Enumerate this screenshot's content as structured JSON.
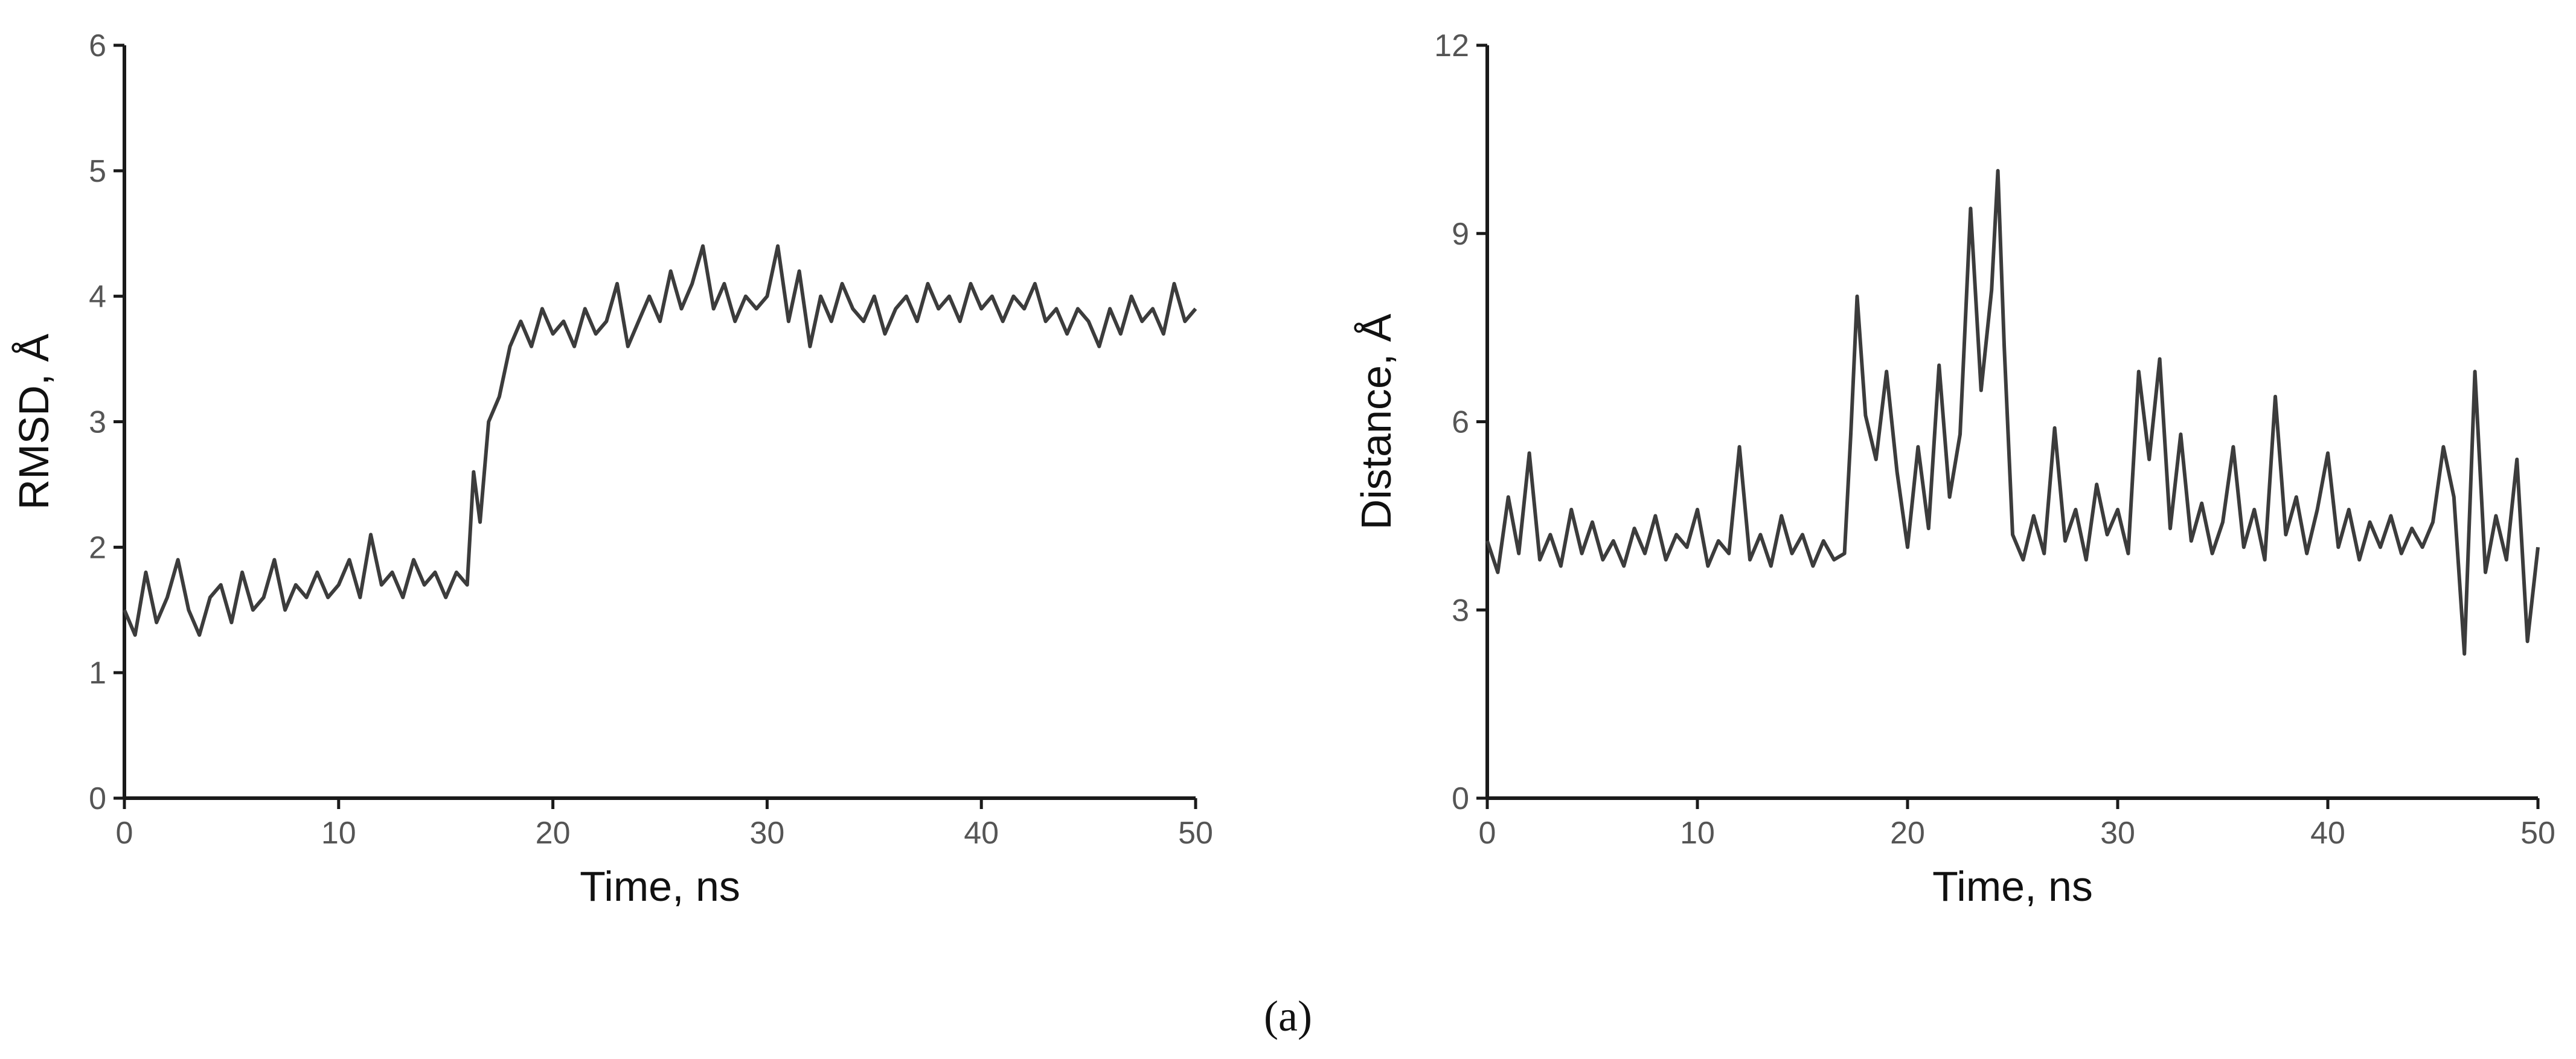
{
  "caption": "(a)",
  "chart_data": [
    {
      "type": "line",
      "xlabel": "Time, ns",
      "ylabel": "RMSD, Å",
      "xlim": [
        0,
        50
      ],
      "ylim": [
        0,
        6
      ],
      "xticks": [
        "0",
        "10",
        "20",
        "30",
        "40",
        "50"
      ],
      "yticks": [
        "0",
        "1",
        "2",
        "3",
        "4",
        "5",
        "6"
      ],
      "grid": false,
      "line_color": "#3c3c3c",
      "series": [
        {
          "x": [
            0,
            0.5,
            1,
            1.5,
            2,
            2.5,
            3,
            3.5,
            4,
            4.5,
            5,
            5.5,
            6,
            6.5,
            7,
            7.5,
            8,
            8.5,
            9,
            9.5,
            10,
            10.5,
            11,
            11.5,
            12,
            12.5,
            13,
            13.5,
            14,
            14.5,
            15,
            15.5,
            16,
            16.3,
            16.6,
            17,
            17.5,
            18,
            18.5,
            19,
            19.5,
            20,
            20.5,
            21,
            21.5,
            22,
            22.5,
            23,
            23.5,
            24,
            24.5,
            25,
            25.5,
            26,
            26.5,
            27,
            27.5,
            28,
            28.5,
            29,
            29.5,
            30,
            30.5,
            31,
            31.5,
            32,
            32.5,
            33,
            33.5,
            34,
            34.5,
            35,
            35.5,
            36,
            36.5,
            37,
            37.5,
            38,
            38.5,
            39,
            39.5,
            40,
            40.5,
            41,
            41.5,
            42,
            42.5,
            43,
            43.5,
            44,
            44.5,
            45,
            45.5,
            46,
            46.5,
            47,
            47.5,
            48,
            48.5,
            49,
            49.5,
            50
          ],
          "y": [
            1.5,
            1.3,
            1.8,
            1.4,
            1.6,
            1.9,
            1.5,
            1.3,
            1.6,
            1.7,
            1.4,
            1.8,
            1.5,
            1.6,
            1.9,
            1.5,
            1.7,
            1.6,
            1.8,
            1.6,
            1.7,
            1.9,
            1.6,
            2.1,
            1.7,
            1.8,
            1.6,
            1.9,
            1.7,
            1.8,
            1.6,
            1.8,
            1.7,
            2.6,
            2.2,
            3.0,
            3.2,
            3.6,
            3.8,
            3.6,
            3.9,
            3.7,
            3.8,
            3.6,
            3.9,
            3.7,
            3.8,
            4.1,
            3.6,
            3.8,
            4.0,
            3.8,
            4.2,
            3.9,
            4.1,
            4.4,
            3.9,
            4.1,
            3.8,
            4.0,
            3.9,
            4.0,
            4.4,
            3.8,
            4.2,
            3.6,
            4.0,
            3.8,
            4.1,
            3.9,
            3.8,
            4.0,
            3.7,
            3.9,
            4.0,
            3.8,
            4.1,
            3.9,
            4.0,
            3.8,
            4.1,
            3.9,
            4.0,
            3.8,
            4.0,
            3.9,
            4.1,
            3.8,
            3.9,
            3.7,
            3.9,
            3.8,
            3.6,
            3.9,
            3.7,
            4.0,
            3.8,
            3.9,
            3.7,
            4.1,
            3.8,
            3.9
          ]
        }
      ]
    },
    {
      "type": "line",
      "xlabel": "Time, ns",
      "ylabel": "Distance, Å",
      "xlim": [
        0,
        50
      ],
      "ylim": [
        0,
        12
      ],
      "xticks": [
        "0",
        "10",
        "20",
        "30",
        "40",
        "50"
      ],
      "yticks": [
        "0",
        "3",
        "6",
        "9",
        "12"
      ],
      "grid": false,
      "line_color": "#3c3c3c",
      "series": [
        {
          "x": [
            0,
            0.5,
            1,
            1.5,
            2,
            2.5,
            3,
            3.5,
            4,
            4.5,
            5,
            5.5,
            6,
            6.5,
            7,
            7.5,
            8,
            8.5,
            9,
            9.5,
            10,
            10.5,
            11,
            11.5,
            12,
            12.5,
            13,
            13.5,
            14,
            14.5,
            15,
            15.5,
            16,
            16.5,
            17,
            17.3,
            17.6,
            18,
            18.5,
            19,
            19.5,
            20,
            20.5,
            21,
            21.5,
            22,
            22.5,
            23,
            23.5,
            24,
            24.3,
            24.6,
            25,
            25.5,
            26,
            26.5,
            27,
            27.5,
            28,
            28.5,
            29,
            29.5,
            30,
            30.5,
            31,
            31.5,
            32,
            32.5,
            33,
            33.5,
            34,
            34.5,
            35,
            35.5,
            36,
            36.5,
            37,
            37.5,
            38,
            38.5,
            39,
            39.5,
            40,
            40.5,
            41,
            41.5,
            42,
            42.5,
            43,
            43.5,
            44,
            44.5,
            45,
            45.5,
            46,
            46.5,
            47,
            47.5,
            48,
            48.5,
            49,
            49.5,
            50
          ],
          "y": [
            4.1,
            3.6,
            4.8,
            3.9,
            5.5,
            3.8,
            4.2,
            3.7,
            4.6,
            3.9,
            4.4,
            3.8,
            4.1,
            3.7,
            4.3,
            3.9,
            4.5,
            3.8,
            4.2,
            4.0,
            4.6,
            3.7,
            4.1,
            3.9,
            5.6,
            3.8,
            4.2,
            3.7,
            4.5,
            3.9,
            4.2,
            3.7,
            4.1,
            3.8,
            3.9,
            5.8,
            8.0,
            6.1,
            5.4,
            6.8,
            5.2,
            4.0,
            5.6,
            4.3,
            6.9,
            4.8,
            5.8,
            9.4,
            6.5,
            8.1,
            10.0,
            7.2,
            4.2,
            3.8,
            4.5,
            3.9,
            5.9,
            4.1,
            4.6,
            3.8,
            5.0,
            4.2,
            4.6,
            3.9,
            6.8,
            5.4,
            7.0,
            4.3,
            5.8,
            4.1,
            4.7,
            3.9,
            4.4,
            5.6,
            4.0,
            4.6,
            3.8,
            6.4,
            4.2,
            4.8,
            3.9,
            4.6,
            5.5,
            4.0,
            4.6,
            3.8,
            4.4,
            4.0,
            4.5,
            3.9,
            4.3,
            4.0,
            4.4,
            5.6,
            4.8,
            2.3,
            6.8,
            3.6,
            4.5,
            3.8,
            5.4,
            2.5,
            4.0
          ]
        }
      ]
    }
  ]
}
